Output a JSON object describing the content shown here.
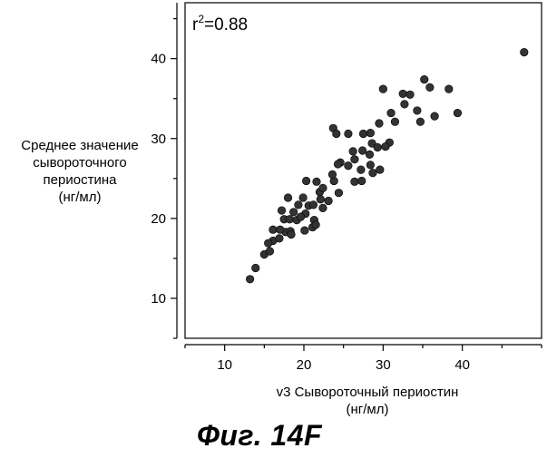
{
  "chart_data": {
    "type": "scatter",
    "annotation": {
      "prefix": "r",
      "superscript": "2",
      "value": "=0.88"
    },
    "ylabel_lines": [
      "Среднее значение",
      "сывороточного",
      "периостина",
      "(нг/мл)"
    ],
    "xlabel_lines": [
      "v3  Сывороточный периостин",
      "(нг/мл)"
    ],
    "xlim": [
      5,
      50
    ],
    "ylim": [
      5,
      47
    ],
    "xticks": [
      10,
      20,
      30,
      40
    ],
    "yticks": [
      10,
      20,
      30,
      40
    ],
    "grid": false,
    "marker_color": "#333333",
    "points": [
      [
        13.2,
        12.4
      ],
      [
        13.9,
        13.8
      ],
      [
        15.0,
        15.5
      ],
      [
        15.7,
        15.9
      ],
      [
        16.1,
        17.2
      ],
      [
        15.5,
        16.9
      ],
      [
        16.9,
        17.5
      ],
      [
        16.1,
        18.6
      ],
      [
        17.7,
        18.3
      ],
      [
        18.3,
        18.4
      ],
      [
        17.5,
        19.9
      ],
      [
        18.2,
        19.9
      ],
      [
        17.2,
        21.0
      ],
      [
        18.0,
        22.6
      ],
      [
        18.7,
        20.8
      ],
      [
        19.1,
        19.8
      ],
      [
        20.1,
        18.5
      ],
      [
        19.3,
        21.7
      ],
      [
        19.9,
        22.6
      ],
      [
        20.2,
        20.6
      ],
      [
        20.6,
        21.6
      ],
      [
        21.2,
        21.7
      ],
      [
        21.3,
        19.8
      ],
      [
        21.1,
        18.9
      ],
      [
        21.5,
        19.2
      ],
      [
        22.1,
        22.4
      ],
      [
        22.0,
        23.3
      ],
      [
        21.6,
        24.6
      ],
      [
        22.4,
        23.8
      ],
      [
        22.4,
        21.3
      ],
      [
        23.1,
        22.2
      ],
      [
        23.8,
        24.7
      ],
      [
        23.6,
        25.5
      ],
      [
        24.4,
        23.2
      ],
      [
        24.6,
        27.0
      ],
      [
        25.6,
        26.6
      ],
      [
        24.3,
        26.8
      ],
      [
        26.2,
        28.4
      ],
      [
        26.4,
        24.6
      ],
      [
        27.3,
        24.7
      ],
      [
        27.2,
        26.1
      ],
      [
        28.4,
        26.7
      ],
      [
        28.7,
        25.7
      ],
      [
        28.3,
        28.0
      ],
      [
        27.4,
        28.5
      ],
      [
        28.6,
        29.4
      ],
      [
        29.3,
        28.9
      ],
      [
        27.5,
        30.6
      ],
      [
        29.5,
        31.9
      ],
      [
        30.8,
        29.5
      ],
      [
        31.5,
        32.1
      ],
      [
        32.7,
        34.3
      ],
      [
        30.3,
        29.0
      ],
      [
        29.6,
        26.1
      ],
      [
        28.4,
        30.7
      ],
      [
        25.6,
        30.6
      ],
      [
        23.7,
        31.3
      ],
      [
        24.1,
        30.6
      ],
      [
        30.0,
        36.2
      ],
      [
        32.5,
        35.6
      ],
      [
        33.4,
        35.5
      ],
      [
        34.3,
        33.5
      ],
      [
        34.7,
        32.1
      ],
      [
        35.2,
        37.4
      ],
      [
        35.9,
        36.4
      ],
      [
        36.5,
        32.8
      ],
      [
        38.3,
        36.2
      ],
      [
        39.4,
        33.2
      ],
      [
        47.8,
        40.8
      ],
      [
        31.0,
        33.2
      ],
      [
        26.4,
        27.4
      ],
      [
        19.6,
        20.2
      ],
      [
        20.3,
        24.7
      ],
      [
        18.4,
        18.0
      ],
      [
        17.0,
        18.6
      ]
    ]
  },
  "caption": "Фиг. 14F"
}
